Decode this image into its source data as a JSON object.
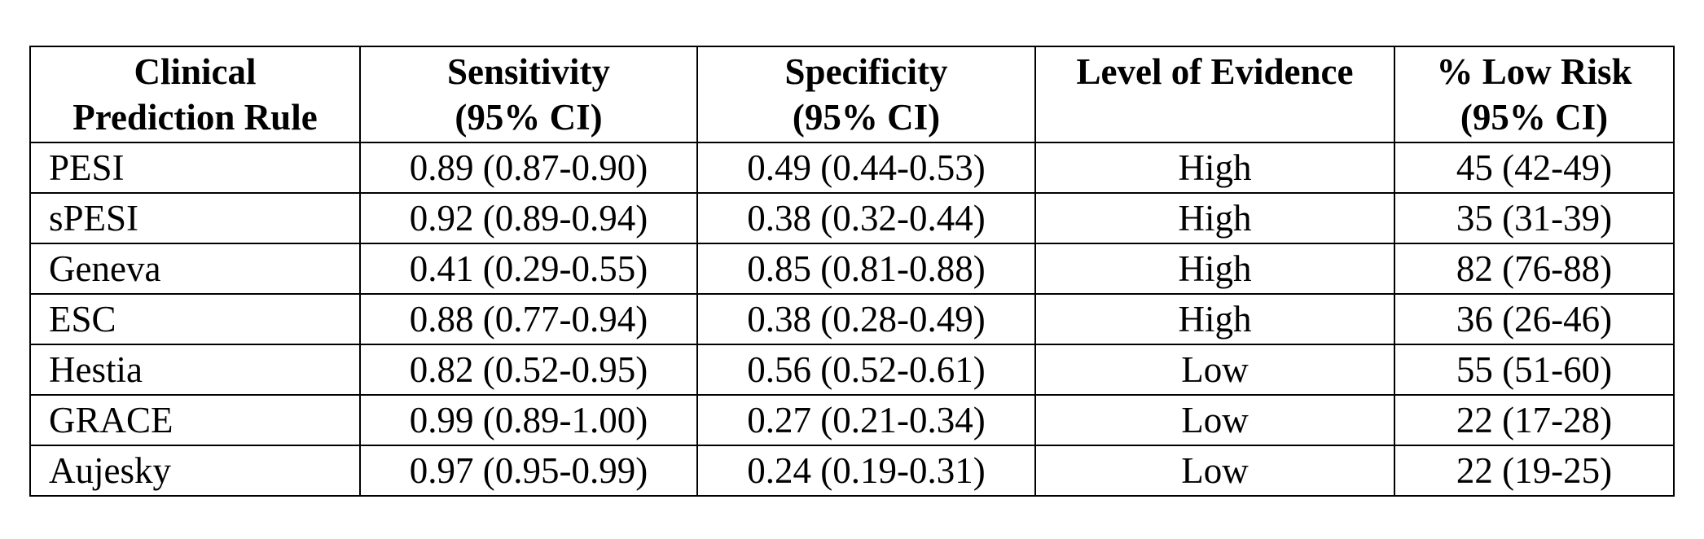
{
  "table": {
    "headers": [
      {
        "lines": [
          "Clinical",
          "Prediction Rule"
        ]
      },
      {
        "lines": [
          "Sensitivity",
          "(95% CI)"
        ]
      },
      {
        "lines": [
          "Specificity",
          "(95% CI)"
        ]
      },
      {
        "lines": [
          "Level of Evidence",
          ""
        ]
      },
      {
        "lines": [
          "% Low Risk",
          "(95% CI)"
        ]
      }
    ],
    "rows": [
      {
        "rule": "PESI",
        "sensitivity": "0.89 (0.87-0.90)",
        "specificity": "0.49 (0.44-0.53)",
        "evidence": "High",
        "low_risk": "45 (42-49)"
      },
      {
        "rule": "sPESI",
        "sensitivity": "0.92 (0.89-0.94)",
        "specificity": "0.38 (0.32-0.44)",
        "evidence": "High",
        "low_risk": "35 (31-39)"
      },
      {
        "rule": "Geneva",
        "sensitivity": "0.41 (0.29-0.55)",
        "specificity": "0.85 (0.81-0.88)",
        "evidence": "High",
        "low_risk": "82 (76-88)"
      },
      {
        "rule": "ESC",
        "sensitivity": "0.88 (0.77-0.94)",
        "specificity": "0.38 (0.28-0.49)",
        "evidence": "High",
        "low_risk": "36 (26-46)"
      },
      {
        "rule": "Hestia",
        "sensitivity": "0.82 (0.52-0.95)",
        "specificity": "0.56 (0.52-0.61)",
        "evidence": "Low",
        "low_risk": "55 (51-60)"
      },
      {
        "rule": "GRACE",
        "sensitivity": "0.99 (0.89-1.00)",
        "specificity": "0.27 (0.21-0.34)",
        "evidence": "Low",
        "low_risk": "22 (17-28)"
      },
      {
        "rule": "Aujesky",
        "sensitivity": "0.97 (0.95-0.99)",
        "specificity": "0.24 (0.19-0.31)",
        "evidence": "Low",
        "low_risk": "22 (19-25)"
      }
    ]
  }
}
